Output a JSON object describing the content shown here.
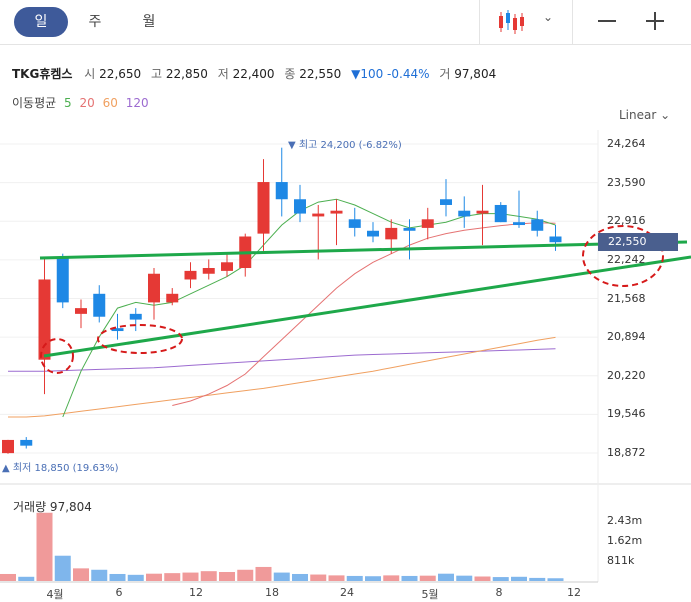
{
  "tabs": [
    {
      "label": "일",
      "active": true
    },
    {
      "label": "주",
      "active": false
    },
    {
      "label": "월",
      "active": false
    }
  ],
  "toolbar": {
    "chart_type_icon": "candlestick-icon",
    "caret": "⌄",
    "zoom_out_icon": "minus-icon",
    "zoom_in_icon": "plus-icon"
  },
  "stock": {
    "name": "TKG휴켐스",
    "open_label": "시",
    "open": "22,650",
    "high_label": "고",
    "high": "22,850",
    "low_label": "저",
    "low": "22,400",
    "close_label": "종",
    "close": "22,550",
    "change": "▼100 -0.44%",
    "volume_label": "거",
    "volume": "97,804"
  },
  "moving_average": {
    "label": "이동평균",
    "periods": [
      {
        "value": "5",
        "color": "#4caf50"
      },
      {
        "value": "20",
        "color": "#e57373"
      },
      {
        "value": "60",
        "color": "#f0a060"
      },
      {
        "value": "120",
        "color": "#9c6bd0"
      }
    ]
  },
  "scale_mode": "Linear",
  "annotations": {
    "high": "최고 24,200 (-6.82%)",
    "low": "최저 18,850 (19.63%)",
    "high_marker": "▼",
    "low_marker": "▲"
  },
  "current_price_tag": "22,550",
  "volume_panel": {
    "label": "거래량 97,804",
    "ticks": [
      "2.43m",
      "1.62m",
      "811k"
    ]
  },
  "chart_data": {
    "type": "candlestick",
    "y_ticks": [
      "24,264",
      "23,590",
      "22,916",
      "22,242",
      "21,568",
      "20,894",
      "20,220",
      "19,546",
      "18,872"
    ],
    "ylim": [
      18872,
      24264
    ],
    "x_ticks": [
      "4월",
      "6",
      "12",
      "18",
      "24",
      "5월",
      "8",
      "12"
    ],
    "candles": [
      {
        "o": 18870,
        "h": 19100,
        "l": 18860,
        "c": 19100
      },
      {
        "o": 19100,
        "h": 19150,
        "l": 18950,
        "c": 19000
      },
      {
        "o": 20500,
        "h": 22300,
        "l": 19900,
        "c": 21900
      },
      {
        "o": 22300,
        "h": 22350,
        "l": 21400,
        "c": 21500
      },
      {
        "o": 21300,
        "h": 21550,
        "l": 21050,
        "c": 21400
      },
      {
        "o": 21650,
        "h": 21800,
        "l": 21150,
        "c": 21250
      },
      {
        "o": 21050,
        "h": 21300,
        "l": 20850,
        "c": 21000
      },
      {
        "o": 21300,
        "h": 21400,
        "l": 21000,
        "c": 21200
      },
      {
        "o": 21500,
        "h": 22100,
        "l": 21200,
        "c": 22000
      },
      {
        "o": 21500,
        "h": 21750,
        "l": 21450,
        "c": 21650
      },
      {
        "o": 21900,
        "h": 22200,
        "l": 21750,
        "c": 22050
      },
      {
        "o": 22000,
        "h": 22250,
        "l": 21900,
        "c": 22100
      },
      {
        "o": 22050,
        "h": 22350,
        "l": 21950,
        "c": 22200
      },
      {
        "o": 22100,
        "h": 22700,
        "l": 21950,
        "c": 22650
      },
      {
        "o": 22700,
        "h": 24000,
        "l": 22400,
        "c": 23600
      },
      {
        "o": 23600,
        "h": 24200,
        "l": 23000,
        "c": 23300
      },
      {
        "o": 23300,
        "h": 23550,
        "l": 22900,
        "c": 23050
      },
      {
        "o": 23000,
        "h": 23200,
        "l": 22250,
        "c": 23050
      },
      {
        "o": 23050,
        "h": 23300,
        "l": 22500,
        "c": 23100
      },
      {
        "o": 22950,
        "h": 23150,
        "l": 22650,
        "c": 22800
      },
      {
        "o": 22750,
        "h": 22900,
        "l": 22550,
        "c": 22650
      },
      {
        "o": 22600,
        "h": 22950,
        "l": 22350,
        "c": 22800
      },
      {
        "o": 22800,
        "h": 22950,
        "l": 22250,
        "c": 22750
      },
      {
        "o": 22800,
        "h": 23150,
        "l": 22600,
        "c": 22950
      },
      {
        "o": 23300,
        "h": 23650,
        "l": 23000,
        "c": 23200
      },
      {
        "o": 23100,
        "h": 23350,
        "l": 22800,
        "c": 23000
      },
      {
        "o": 23050,
        "h": 23550,
        "l": 22500,
        "c": 23100
      },
      {
        "o": 23200,
        "h": 23250,
        "l": 22900,
        "c": 22900
      },
      {
        "o": 22900,
        "h": 23450,
        "l": 22800,
        "c": 22850
      },
      {
        "o": 22950,
        "h": 23100,
        "l": 22650,
        "c": 22750
      },
      {
        "o": 22650,
        "h": 22850,
        "l": 22400,
        "c": 22550
      }
    ],
    "ma5": [
      null,
      null,
      null,
      19500,
      20300,
      20900,
      21400,
      21500,
      21450,
      21500,
      21650,
      21800,
      21950,
      22150,
      22500,
      22850,
      23100,
      23250,
      23300,
      23200,
      23050,
      22900,
      22800,
      22850,
      22900,
      23000,
      23050,
      23050,
      23000,
      22950,
      22850
    ],
    "ma20": [
      null,
      null,
      null,
      null,
      null,
      null,
      null,
      null,
      null,
      19700,
      19780,
      19900,
      20050,
      20250,
      20550,
      20850,
      21150,
      21450,
      21750,
      22000,
      22200,
      22350,
      22500,
      22620,
      22700,
      22760,
      22800,
      22840,
      22870,
      22890,
      22880
    ],
    "ma60": [
      19500,
      19500,
      19520,
      19560,
      19600,
      19640,
      19680,
      19720,
      19760,
      19800,
      19840,
      19880,
      19920,
      19960,
      20000,
      20050,
      20100,
      20150,
      20200,
      20250,
      20300,
      20360,
      20420,
      20480,
      20540,
      20600,
      20660,
      20720,
      20780,
      20840,
      20890
    ],
    "ma120": [
      20300,
      20300,
      20300,
      20310,
      20320,
      20330,
      20340,
      20350,
      20360,
      20380,
      20400,
      20420,
      20440,
      20460,
      20480,
      20500,
      20520,
      20540,
      20560,
      20580,
      20590,
      20600,
      20610,
      20620,
      20630,
      20640,
      20650,
      20660,
      20670,
      20680,
      20690
    ],
    "volume": [
      250000,
      150000,
      2430000,
      900000,
      450000,
      400000,
      250000,
      220000,
      260000,
      280000,
      300000,
      350000,
      320000,
      400000,
      500000,
      300000,
      250000,
      230000,
      200000,
      180000,
      170000,
      200000,
      180000,
      190000,
      260000,
      190000,
      160000,
      140000,
      150000,
      110000,
      97804
    ],
    "volume_max": 3240000
  }
}
